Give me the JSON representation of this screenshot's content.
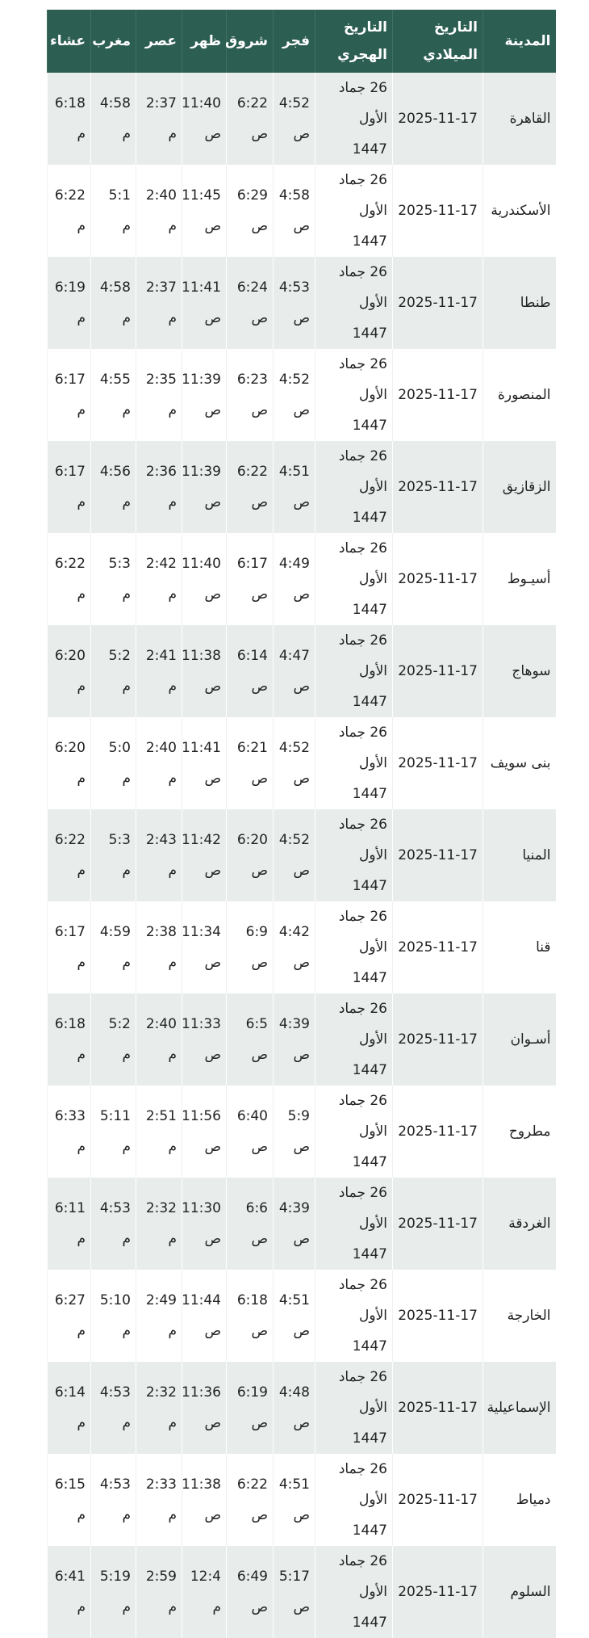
{
  "colors": {
    "header_bg": "#2d5e52",
    "row_alt_bg": "#e8edec"
  },
  "headers": {
    "city": "المدينة",
    "gregorian": "التاريخ الميلادي",
    "hijri": "التاريخ الهجري",
    "fajr": "فجر",
    "shuruq": "شروق",
    "dhuhr": "ظهر",
    "asr": "عصر",
    "maghrib": "مغرب",
    "isha": "عشاء"
  },
  "rows": [
    {
      "city": "القاهرة",
      "gregorian": "2025-11-17",
      "hijri": "26 جماد الأول 1447",
      "fajr": "4:52 ص",
      "shuruq": "6:22 ص",
      "dhuhr": "11:40 ص",
      "asr": "2:37 م",
      "maghrib": "4:58 م",
      "isha": "6:18 م"
    },
    {
      "city": "الأسكندرية",
      "gregorian": "2025-11-17",
      "hijri": "26 جماد الأول 1447",
      "fajr": "4:58 ص",
      "shuruq": "6:29 ص",
      "dhuhr": "11:45 ص",
      "asr": "2:40 م",
      "maghrib": "5:1 م",
      "isha": "6:22 م"
    },
    {
      "city": "طنطا",
      "gregorian": "2025-11-17",
      "hijri": "26 جماد الأول 1447",
      "fajr": "4:53 ص",
      "shuruq": "6:24 ص",
      "dhuhr": "11:41 ص",
      "asr": "2:37 م",
      "maghrib": "4:58 م",
      "isha": "6:19 م"
    },
    {
      "city": "المنصورة",
      "gregorian": "2025-11-17",
      "hijri": "26 جماد الأول 1447",
      "fajr": "4:52 ص",
      "shuruq": "6:23 ص",
      "dhuhr": "11:39 ص",
      "asr": "2:35 م",
      "maghrib": "4:55 م",
      "isha": "6:17 م"
    },
    {
      "city": "الزقازيق",
      "gregorian": "2025-11-17",
      "hijri": "26 جماد الأول 1447",
      "fajr": "4:51 ص",
      "shuruq": "6:22 ص",
      "dhuhr": "11:39 ص",
      "asr": "2:36 م",
      "maghrib": "4:56 م",
      "isha": "6:17 م"
    },
    {
      "city": "أسيـوط",
      "gregorian": "2025-11-17",
      "hijri": "26 جماد الأول 1447",
      "fajr": "4:49 ص",
      "shuruq": "6:17 ص",
      "dhuhr": "11:40 ص",
      "asr": "2:42 م",
      "maghrib": "5:3 م",
      "isha": "6:22 م"
    },
    {
      "city": "سوهاج",
      "gregorian": "2025-11-17",
      "hijri": "26 جماد الأول 1447",
      "fajr": "4:47 ص",
      "shuruq": "6:14 ص",
      "dhuhr": "11:38 ص",
      "asr": "2:41 م",
      "maghrib": "5:2 م",
      "isha": "6:20 م"
    },
    {
      "city": "بنى سويف",
      "gregorian": "2025-11-17",
      "hijri": "26 جماد الأول 1447",
      "fajr": "4:52 ص",
      "shuruq": "6:21 ص",
      "dhuhr": "11:41 ص",
      "asr": "2:40 م",
      "maghrib": "5:0 م",
      "isha": "6:20 م"
    },
    {
      "city": "المنيا",
      "gregorian": "2025-11-17",
      "hijri": "26 جماد الأول 1447",
      "fajr": "4:52 ص",
      "shuruq": "6:20 ص",
      "dhuhr": "11:42 ص",
      "asr": "2:43 م",
      "maghrib": "5:3 م",
      "isha": "6:22 م"
    },
    {
      "city": "قنا",
      "gregorian": "2025-11-17",
      "hijri": "26 جماد الأول 1447",
      "fajr": "4:42 ص",
      "shuruq": "6:9 ص",
      "dhuhr": "11:34 ص",
      "asr": "2:38 م",
      "maghrib": "4:59 م",
      "isha": "6:17 م"
    },
    {
      "city": "أسـوان",
      "gregorian": "2025-11-17",
      "hijri": "26 جماد الأول 1447",
      "fajr": "4:39 ص",
      "shuruq": "6:5 ص",
      "dhuhr": "11:33 ص",
      "asr": "2:40 م",
      "maghrib": "5:2 م",
      "isha": "6:18 م"
    },
    {
      "city": "مطروح",
      "gregorian": "2025-11-17",
      "hijri": "26 جماد الأول 1447",
      "fajr": "5:9 ص",
      "shuruq": "6:40 ص",
      "dhuhr": "11:56 ص",
      "asr": "2:51 م",
      "maghrib": "5:11 م",
      "isha": "6:33 م"
    },
    {
      "city": "الغردقة",
      "gregorian": "2025-11-17",
      "hijri": "26 جماد الأول 1447",
      "fajr": "4:39 ص",
      "shuruq": "6:6 ص",
      "dhuhr": "11:30 ص",
      "asr": "2:32 م",
      "maghrib": "4:53 م",
      "isha": "6:11 م"
    },
    {
      "city": "الخارجة",
      "gregorian": "2025-11-17",
      "hijri": "26 جماد الأول 1447",
      "fajr": "4:51 ص",
      "shuruq": "6:18 ص",
      "dhuhr": "11:44 ص",
      "asr": "2:49 م",
      "maghrib": "5:10 م",
      "isha": "6:27 م"
    },
    {
      "city": "الإسماعيلية",
      "gregorian": "2025-11-17",
      "hijri": "26 جماد الأول 1447",
      "fajr": "4:48 ص",
      "shuruq": "6:19 ص",
      "dhuhr": "11:36 ص",
      "asr": "2:32 م",
      "maghrib": "4:53 م",
      "isha": "6:14 م"
    },
    {
      "city": "دمياط",
      "gregorian": "2025-11-17",
      "hijri": "26 جماد الأول 1447",
      "fajr": "4:51 ص",
      "shuruq": "6:22 ص",
      "dhuhr": "11:38 ص",
      "asr": "2:33 م",
      "maghrib": "4:53 م",
      "isha": "6:15 م"
    },
    {
      "city": "السلوم",
      "gregorian": "2025-11-17",
      "hijri": "26 جماد الأول 1447",
      "fajr": "5:17 ص",
      "shuruq": "6:49 ص",
      "dhuhr": "12:4 م",
      "asr": "2:59 م",
      "maghrib": "5:19 م",
      "isha": "6:41 م"
    }
  ]
}
